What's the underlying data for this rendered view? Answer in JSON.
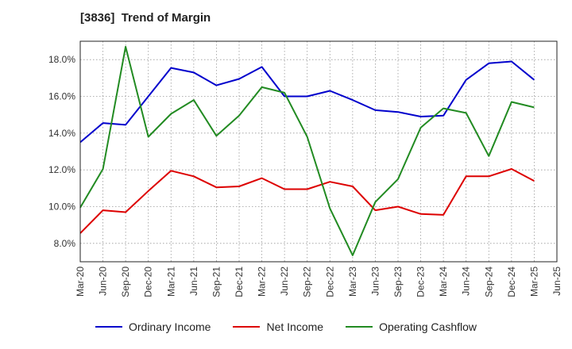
{
  "chart_data": {
    "type": "line",
    "title": "[3836]  Trend of Margin",
    "categories": [
      "Mar-20",
      "Jun-20",
      "Sep-20",
      "Dec-20",
      "Mar-21",
      "Jun-21",
      "Sep-21",
      "Dec-21",
      "Mar-22",
      "Jun-22",
      "Sep-22",
      "Dec-22",
      "Mar-23",
      "Jun-23",
      "Sep-23",
      "Dec-23",
      "Mar-24",
      "Jun-24",
      "Sep-24",
      "Dec-24",
      "Mar-25",
      "Jun-25"
    ],
    "ylim": [
      7.0,
      19.0
    ],
    "yticks": [
      8.0,
      10.0,
      12.0,
      14.0,
      16.0,
      18.0
    ],
    "ytick_labels": [
      "8.0%",
      "10.0%",
      "12.0%",
      "14.0%",
      "16.0%",
      "18.0%"
    ],
    "grid": true,
    "legend_position": "bottom",
    "series": [
      {
        "name": "Ordinary Income",
        "color": "#0000cc",
        "values": [
          13.5,
          14.55,
          14.45,
          16.0,
          17.55,
          17.3,
          16.6,
          16.95,
          17.6,
          16.0,
          16.0,
          16.3,
          15.8,
          15.25,
          15.15,
          14.9,
          14.95,
          16.9,
          17.8,
          17.9,
          16.9,
          null
        ]
      },
      {
        "name": "Net Income",
        "color": "#dd0000",
        "values": [
          8.55,
          9.8,
          9.7,
          10.85,
          11.95,
          11.65,
          11.05,
          11.1,
          11.55,
          10.95,
          10.95,
          11.35,
          11.1,
          9.8,
          10.0,
          9.6,
          9.55,
          11.65,
          11.65,
          12.05,
          11.4,
          null
        ]
      },
      {
        "name": "Operating Cashflow",
        "color": "#228b22",
        "values": [
          9.95,
          12.05,
          18.7,
          13.8,
          15.05,
          15.8,
          13.85,
          14.95,
          16.5,
          16.2,
          13.8,
          9.9,
          7.35,
          10.25,
          11.5,
          14.3,
          15.35,
          15.1,
          12.75,
          15.7,
          15.4,
          null
        ]
      }
    ]
  }
}
